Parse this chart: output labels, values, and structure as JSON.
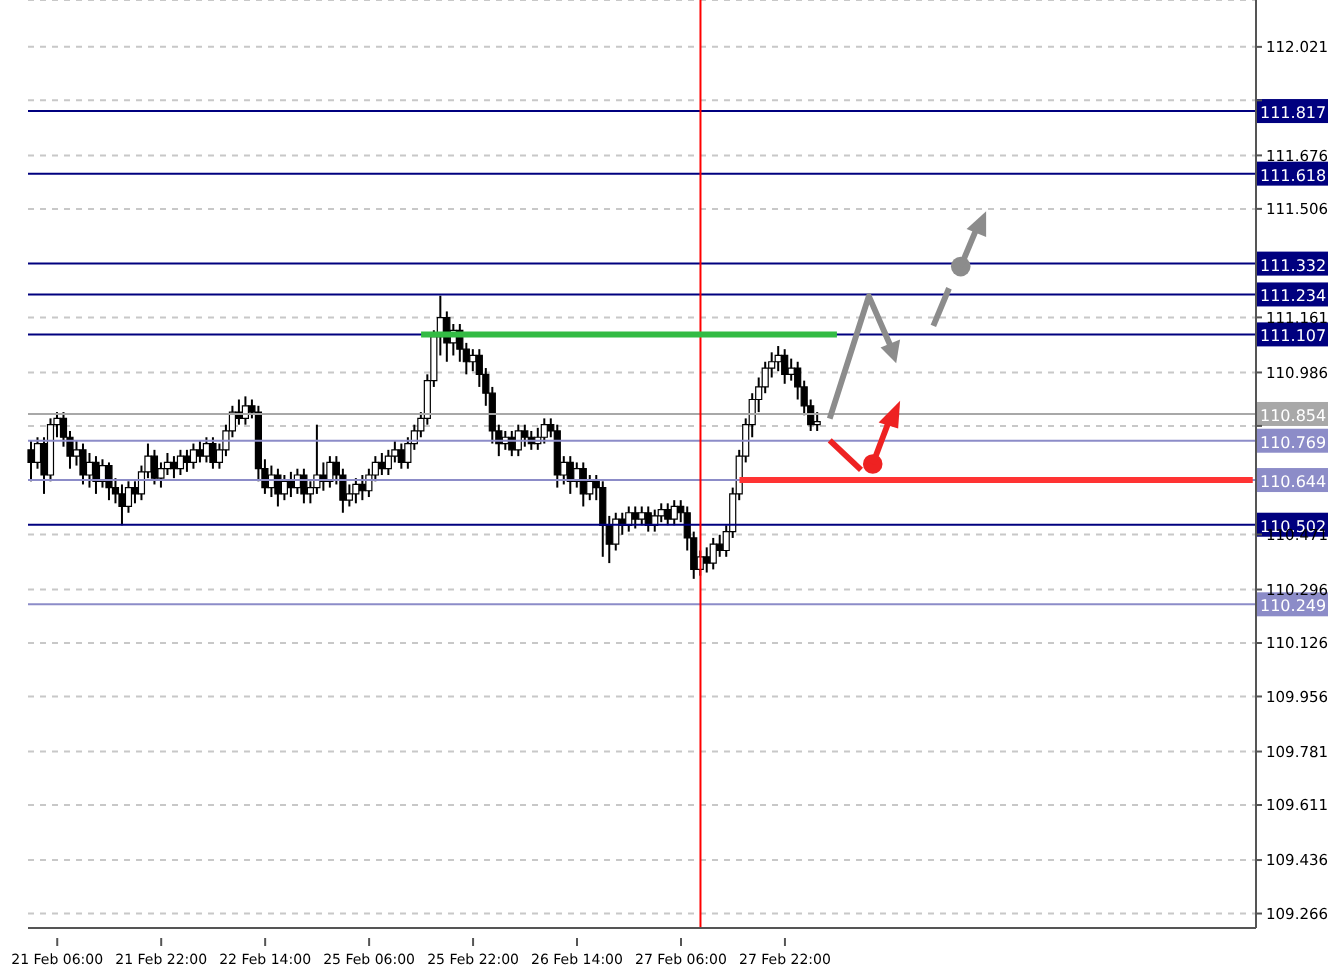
{
  "chart_data": {
    "type": "candlestick",
    "categories": [
      null,
      null,
      null,
      null,
      "21 Feb 06:00",
      null,
      null,
      null,
      null,
      null,
      null,
      null,
      null,
      null,
      null,
      null,
      null,
      null,
      null,
      null,
      "21 Feb 22:00",
      null,
      null,
      null,
      null,
      null,
      null,
      null,
      null,
      null,
      null,
      null,
      null,
      null,
      null,
      null,
      "22 Feb 14:00",
      null,
      null,
      null,
      null,
      null,
      null,
      null,
      null,
      null,
      null,
      null,
      null,
      null,
      null,
      null,
      "25 Feb 06:00",
      null,
      null,
      null,
      null,
      null,
      null,
      null,
      null,
      null,
      null,
      null,
      null,
      null,
      null,
      null,
      "25 Feb 22:00",
      null,
      null,
      null,
      null,
      null,
      null,
      null,
      null,
      null,
      null,
      null,
      null,
      null,
      null,
      null,
      "26 Feb 14:00",
      null,
      null,
      null,
      null,
      null,
      null,
      null,
      null,
      null,
      null,
      null,
      null,
      null,
      null,
      null,
      "27 Feb 06:00",
      null,
      null,
      null,
      null,
      null,
      null,
      null,
      null,
      null,
      null,
      null,
      null,
      null,
      null,
      null,
      "27 Feb 22:00",
      null,
      null,
      null,
      null,
      null,
      null,
      null,
      null,
      null,
      null,
      null,
      null,
      null,
      null,
      null,
      null,
      null,
      null,
      null,
      null,
      null,
      null,
      null,
      null,
      null,
      null,
      null,
      null,
      null,
      null,
      null,
      null,
      null,
      null,
      null,
      null,
      null,
      null,
      null,
      null,
      null,
      null,
      null,
      null,
      null,
      null,
      null,
      null,
      null,
      null,
      null,
      null,
      null,
      null,
      null,
      null,
      null,
      null,
      null,
      null,
      null,
      null,
      null,
      null,
      null,
      null,
      null,
      null,
      null,
      null,
      null,
      null
    ],
    "ohlc": [
      [
        110.74,
        110.77,
        110.64,
        110.7
      ],
      [
        110.7,
        110.78,
        110.68,
        110.76
      ],
      [
        110.76,
        110.78,
        110.6,
        110.66
      ],
      [
        110.66,
        110.84,
        110.64,
        110.82
      ],
      [
        110.82,
        110.86,
        110.78,
        110.84
      ],
      [
        110.84,
        110.86,
        110.75,
        110.78
      ],
      [
        110.78,
        110.8,
        110.68,
        110.72
      ],
      [
        110.72,
        110.77,
        110.69,
        110.74
      ],
      [
        110.74,
        110.76,
        110.63,
        110.66
      ],
      [
        110.66,
        110.73,
        110.62,
        110.7
      ],
      [
        110.7,
        110.72,
        110.6,
        110.64
      ],
      [
        110.64,
        110.71,
        110.62,
        110.69
      ],
      [
        110.69,
        110.7,
        110.58,
        110.62
      ],
      [
        110.62,
        110.65,
        110.57,
        110.6
      ],
      [
        110.6,
        110.63,
        110.5,
        110.56
      ],
      [
        110.56,
        110.64,
        110.54,
        110.62
      ],
      [
        110.62,
        110.64,
        110.57,
        110.6
      ],
      [
        110.6,
        110.69,
        110.58,
        110.67
      ],
      [
        110.67,
        110.76,
        110.65,
        110.72
      ],
      [
        110.72,
        110.74,
        110.63,
        110.65
      ],
      [
        110.65,
        110.7,
        110.62,
        110.68
      ],
      [
        110.68,
        110.73,
        110.66,
        110.7
      ],
      [
        110.7,
        110.72,
        110.65,
        110.68
      ],
      [
        110.68,
        110.74,
        110.66,
        110.72
      ],
      [
        110.72,
        110.74,
        110.67,
        110.7
      ],
      [
        110.7,
        110.76,
        110.68,
        110.74
      ],
      [
        110.74,
        110.77,
        110.7,
        110.72
      ],
      [
        110.72,
        110.78,
        110.7,
        110.76
      ],
      [
        110.76,
        110.78,
        110.68,
        110.7
      ],
      [
        110.7,
        110.76,
        110.68,
        110.74
      ],
      [
        110.74,
        110.82,
        110.72,
        110.8
      ],
      [
        110.8,
        110.88,
        110.78,
        110.86
      ],
      [
        110.86,
        110.9,
        110.82,
        110.84
      ],
      [
        110.84,
        110.91,
        110.82,
        110.88
      ],
      [
        110.88,
        110.9,
        110.84,
        110.86
      ],
      [
        110.86,
        110.88,
        110.64,
        110.68
      ],
      [
        110.68,
        110.71,
        110.6,
        110.62
      ],
      [
        110.62,
        110.69,
        110.59,
        110.66
      ],
      [
        110.66,
        110.68,
        110.56,
        110.6
      ],
      [
        110.6,
        110.66,
        110.58,
        110.64
      ],
      [
        110.64,
        110.67,
        110.59,
        110.62
      ],
      [
        110.62,
        110.68,
        110.6,
        110.66
      ],
      [
        110.66,
        110.68,
        110.57,
        110.6
      ],
      [
        110.6,
        110.64,
        110.57,
        110.62
      ],
      [
        110.62,
        110.82,
        110.6,
        110.66
      ],
      [
        110.66,
        110.7,
        110.61,
        110.64
      ],
      [
        110.64,
        110.72,
        110.62,
        110.7
      ],
      [
        110.7,
        110.72,
        110.63,
        110.66
      ],
      [
        110.66,
        110.68,
        110.54,
        110.58
      ],
      [
        110.58,
        110.63,
        110.56,
        110.6
      ],
      [
        110.6,
        110.65,
        110.57,
        110.63
      ],
      [
        110.63,
        110.66,
        110.58,
        110.61
      ],
      [
        110.61,
        110.68,
        110.59,
        110.66
      ],
      [
        110.66,
        110.72,
        110.64,
        110.7
      ],
      [
        110.7,
        110.73,
        110.66,
        110.68
      ],
      [
        110.68,
        110.74,
        110.66,
        110.72
      ],
      [
        110.72,
        110.77,
        110.7,
        110.74
      ],
      [
        110.74,
        110.76,
        110.68,
        110.7
      ],
      [
        110.7,
        110.78,
        110.68,
        110.76
      ],
      [
        110.76,
        110.82,
        110.74,
        110.8
      ],
      [
        110.8,
        110.86,
        110.78,
        110.84
      ],
      [
        110.84,
        110.98,
        110.82,
        110.96
      ],
      [
        110.96,
        111.12,
        110.94,
        111.1
      ],
      [
        111.1,
        111.23,
        111.04,
        111.16
      ],
      [
        111.16,
        111.18,
        111.02,
        111.08
      ],
      [
        111.08,
        111.14,
        111.04,
        111.12
      ],
      [
        111.12,
        111.14,
        111.02,
        111.06
      ],
      [
        111.06,
        111.08,
        110.98,
        111.02
      ],
      [
        111.02,
        111.06,
        110.99,
        111.04
      ],
      [
        111.04,
        111.06,
        110.94,
        110.98
      ],
      [
        110.98,
        111.0,
        110.88,
        110.92
      ],
      [
        110.92,
        110.94,
        110.76,
        110.8
      ],
      [
        110.8,
        110.82,
        110.72,
        110.76
      ],
      [
        110.76,
        110.8,
        110.74,
        110.78
      ],
      [
        110.78,
        110.8,
        110.72,
        110.74
      ],
      [
        110.74,
        110.82,
        110.72,
        110.8
      ],
      [
        110.8,
        110.82,
        110.75,
        110.78
      ],
      [
        110.78,
        110.8,
        110.74,
        110.76
      ],
      [
        110.76,
        110.81,
        110.74,
        110.78
      ],
      [
        110.78,
        110.84,
        110.76,
        110.82
      ],
      [
        110.82,
        110.84,
        110.78,
        110.8
      ],
      [
        110.8,
        110.82,
        110.62,
        110.66
      ],
      [
        110.66,
        110.72,
        110.63,
        110.7
      ],
      [
        110.7,
        110.72,
        110.6,
        110.64
      ],
      [
        110.64,
        110.7,
        110.62,
        110.68
      ],
      [
        110.68,
        110.7,
        110.56,
        110.6
      ],
      [
        110.6,
        110.66,
        110.58,
        110.64
      ],
      [
        110.64,
        110.66,
        110.58,
        110.62
      ],
      [
        110.62,
        110.64,
        110.4,
        110.5
      ],
      [
        110.5,
        110.53,
        110.38,
        110.44
      ],
      [
        110.44,
        110.54,
        110.42,
        110.52
      ],
      [
        110.52,
        110.54,
        110.47,
        110.5
      ],
      [
        110.5,
        110.56,
        110.48,
        110.54
      ],
      [
        110.54,
        110.56,
        110.49,
        110.52
      ],
      [
        110.52,
        110.56,
        110.5,
        110.54
      ],
      [
        110.54,
        110.56,
        110.48,
        110.5
      ],
      [
        110.5,
        110.55,
        110.48,
        110.53
      ],
      [
        110.53,
        110.57,
        110.51,
        110.55
      ],
      [
        110.55,
        110.57,
        110.5,
        110.52
      ],
      [
        110.52,
        110.58,
        110.5,
        110.56
      ],
      [
        110.56,
        110.58,
        110.51,
        110.54
      ],
      [
        110.54,
        110.56,
        110.42,
        110.46
      ],
      [
        110.46,
        110.48,
        110.33,
        110.36
      ],
      [
        110.36,
        110.42,
        110.34,
        110.4
      ],
      [
        110.4,
        110.43,
        110.35,
        110.38
      ],
      [
        110.38,
        110.46,
        110.36,
        110.44
      ],
      [
        110.44,
        110.47,
        110.4,
        110.42
      ],
      [
        110.42,
        110.5,
        110.4,
        110.48
      ],
      [
        110.48,
        110.62,
        110.46,
        110.6
      ],
      [
        110.6,
        110.74,
        110.58,
        110.72
      ],
      [
        110.72,
        110.84,
        110.7,
        110.82
      ],
      [
        110.82,
        110.92,
        110.78,
        110.9
      ],
      [
        110.9,
        110.97,
        110.86,
        110.94
      ],
      [
        110.94,
        111.02,
        110.92,
        111.0
      ],
      [
        111.0,
        111.05,
        110.97,
        111.02
      ],
      [
        111.02,
        111.07,
        110.99,
        111.04
      ],
      [
        111.04,
        111.06,
        110.95,
        110.98
      ],
      [
        110.98,
        111.03,
        110.96,
        111.0
      ],
      [
        111.0,
        111.02,
        110.9,
        110.94
      ],
      [
        110.94,
        110.96,
        110.85,
        110.88
      ],
      [
        110.88,
        110.9,
        110.8,
        110.82
      ],
      [
        110.82,
        110.86,
        110.8,
        110.83
      ],
      null,
      null,
      null,
      null,
      null,
      null,
      null,
      null,
      null,
      null,
      null,
      null,
      null,
      null,
      null,
      null,
      null,
      null,
      null,
      null,
      null,
      null,
      null,
      null,
      null,
      null,
      null,
      null,
      null,
      null,
      null,
      null,
      null,
      null,
      null,
      null,
      null,
      null,
      null,
      null,
      null,
      null,
      null,
      null,
      null,
      null,
      null,
      null,
      null,
      null,
      null,
      null,
      null,
      null,
      null,
      null,
      null,
      null,
      null,
      null,
      null,
      null,
      null,
      null,
      null,
      null,
      null
    ],
    "series": [
      {
        "type": "line",
        "color": "#33bb44",
        "values": [
          null,
          null,
          null,
          null,
          null,
          null,
          null,
          null,
          null,
          null,
          null,
          null,
          null,
          null,
          null,
          null,
          null,
          null,
          null,
          null,
          null,
          null,
          null,
          null,
          null,
          null,
          null,
          null,
          null,
          null,
          null,
          null,
          null,
          null,
          null,
          null,
          null,
          null,
          null,
          null,
          null,
          null,
          null,
          null,
          null,
          null,
          null,
          null,
          null,
          null,
          null,
          null,
          null,
          null,
          null,
          null,
          null,
          null,
          null,
          null,
          111.107,
          111.107,
          111.107,
          111.107,
          111.107,
          111.107,
          111.107,
          111.107,
          111.107,
          111.107,
          111.107,
          111.107,
          111.107,
          111.107,
          111.107,
          111.107,
          111.107,
          111.107,
          111.107,
          111.107,
          111.107,
          111.107,
          111.107,
          111.107,
          111.107,
          111.107,
          111.107,
          111.107,
          111.107,
          111.107,
          111.107,
          111.107,
          111.107,
          111.107,
          111.107,
          111.107,
          111.107,
          111.107,
          111.107,
          111.107,
          111.107,
          111.107,
          111.107,
          111.107,
          111.107,
          111.107,
          111.107,
          111.107,
          111.107,
          111.107,
          111.107,
          111.107,
          111.107,
          111.107,
          111.107,
          111.107,
          111.107,
          111.107,
          111.107,
          111.107,
          111.107,
          111.107,
          111.107,
          111.107,
          111.107,
          null,
          null,
          null,
          null,
          null,
          null,
          null,
          null,
          null,
          null,
          null,
          null,
          null,
          null,
          null,
          null,
          null,
          null,
          null,
          null,
          null,
          null,
          null,
          null,
          null,
          null,
          null,
          null,
          null,
          null,
          null,
          null,
          null,
          null,
          null,
          null,
          null,
          null,
          null,
          null,
          null,
          null,
          null,
          null,
          null,
          null,
          null,
          null,
          null,
          null,
          null,
          null,
          null,
          null,
          null,
          null,
          null,
          null,
          null,
          null,
          null,
          null,
          null,
          null
        ]
      },
      {
        "type": "line",
        "color": "#ff3333",
        "values": [
          null,
          null,
          null,
          null,
          null,
          null,
          null,
          null,
          null,
          null,
          null,
          null,
          null,
          null,
          null,
          null,
          null,
          null,
          null,
          null,
          null,
          null,
          null,
          null,
          null,
          null,
          null,
          null,
          null,
          null,
          null,
          null,
          null,
          null,
          null,
          null,
          null,
          null,
          null,
          null,
          null,
          null,
          null,
          null,
          null,
          null,
          null,
          null,
          null,
          null,
          null,
          null,
          null,
          null,
          null,
          null,
          null,
          null,
          null,
          null,
          null,
          null,
          null,
          null,
          null,
          null,
          null,
          null,
          null,
          null,
          null,
          null,
          null,
          null,
          null,
          null,
          null,
          null,
          null,
          null,
          null,
          null,
          null,
          null,
          null,
          null,
          null,
          null,
          null,
          null,
          null,
          null,
          null,
          null,
          null,
          null,
          null,
          null,
          null,
          null,
          null,
          null,
          null,
          null,
          null,
          null,
          null,
          null,
          null,
          110.644,
          110.644,
          110.644,
          110.644,
          110.644,
          110.644,
          110.644,
          110.644,
          110.644,
          110.644,
          110.644,
          110.644,
          110.644,
          110.644,
          110.644,
          110.644,
          110.644,
          110.644,
          110.644,
          110.644,
          110.644,
          110.644,
          110.644,
          110.644,
          110.644,
          110.644,
          110.644,
          110.644,
          110.644,
          110.644,
          110.644,
          110.644,
          110.644,
          110.644,
          110.644,
          110.644,
          110.644,
          110.644,
          110.644,
          110.644,
          110.644,
          110.644,
          110.644,
          110.644,
          110.644,
          110.644,
          110.644,
          110.644,
          110.644,
          110.644,
          110.644,
          110.644,
          110.644,
          110.644,
          110.644,
          110.644,
          110.644,
          110.644,
          110.644,
          110.644,
          110.644,
          110.644,
          110.644,
          110.644,
          110.644,
          110.644,
          110.644,
          110.644,
          110.644,
          110.644,
          110.644,
          110.644,
          110.644,
          110.644,
          110.644,
          110.644,
          110.644,
          110.644,
          110.644,
          110.644
        ]
      }
    ],
    "ylim": [
      109.22,
      112.17
    ],
    "yticks": [
      112.021,
      {
        "value": 111.851,
        "label": null
      },
      111.676,
      111.506,
      111.161,
      110.986,
      {
        "value": 110.816,
        "label": null
      },
      110.471,
      110.296,
      110.126,
      109.956,
      109.781,
      109.611,
      109.436,
      109.266
    ],
    "ref_lines": [
      {
        "axis": "y",
        "value": 111.817,
        "label": "111.817",
        "color": "#00007f"
      },
      {
        "axis": "y",
        "value": 111.618,
        "label": "111.618",
        "color": "#00007f"
      },
      {
        "axis": "y",
        "value": 111.332,
        "label": "111.332",
        "color": "#00007f"
      },
      {
        "axis": "y",
        "value": 111.234,
        "label": "111.234",
        "color": "#00007f"
      },
      {
        "axis": "y",
        "value": 111.107,
        "label": "111.107",
        "color": "#00007f"
      },
      {
        "axis": "y",
        "value": 110.854,
        "label": "110.854",
        "color": "#a8a8a8"
      },
      {
        "axis": "y",
        "value": 110.769,
        "label": "110.769",
        "color": "#8c8cc8"
      },
      {
        "axis": "y",
        "value": 110.644,
        "label": "110.644",
        "color": "#8c8cc8"
      },
      {
        "axis": "y",
        "value": 110.502,
        "label": "110.502",
        "color": "#00007f"
      },
      {
        "axis": "y",
        "value": 110.249,
        "label": "110.249",
        "color": "#8c8cc8"
      }
    ],
    "grid": "y"
  }
}
